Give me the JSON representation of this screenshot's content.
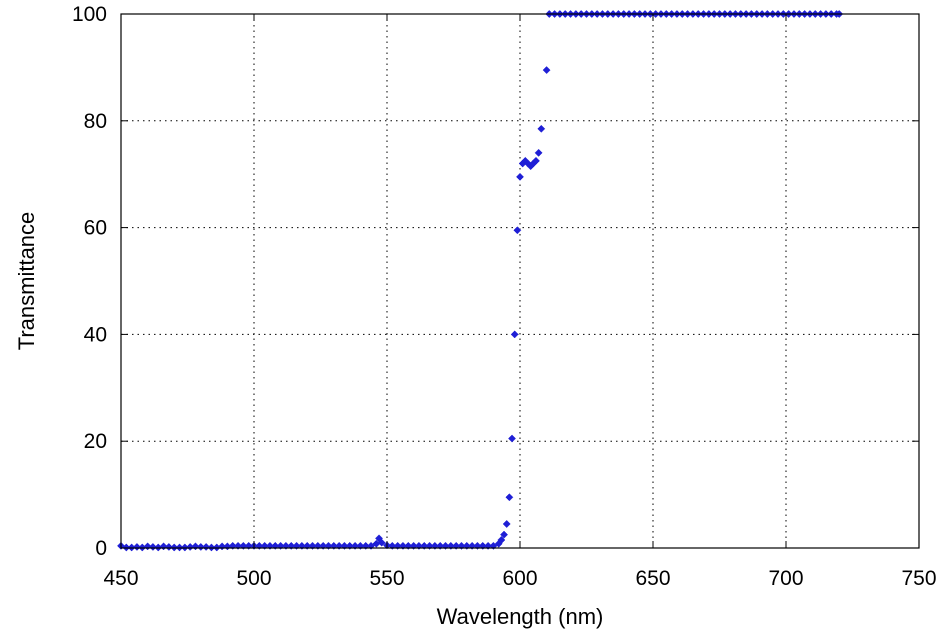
{
  "chart_data": {
    "type": "scatter",
    "title": "",
    "xlabel": "Wavelength (nm)",
    "ylabel": "Transmittance",
    "xlim": [
      450,
      750
    ],
    "ylim": [
      0,
      100
    ],
    "xticks": [
      "450",
      "500",
      "550",
      "600",
      "650",
      "700",
      "750"
    ],
    "xtick_values": [
      450,
      500,
      550,
      600,
      650,
      700,
      750
    ],
    "yticks": [
      "0",
      "20",
      "40",
      "60",
      "80",
      "100"
    ],
    "ytick_values": [
      0,
      20,
      40,
      60,
      80,
      100
    ],
    "grid": true,
    "marker_color": "#1f1fd6",
    "series": [
      {
        "points": [
          [
            450,
            0.4
          ],
          [
            452,
            0.1
          ],
          [
            454,
            0.1
          ],
          [
            456,
            0.2
          ],
          [
            458,
            0.1
          ],
          [
            460,
            0.3
          ],
          [
            462,
            0.2
          ],
          [
            464,
            0.1
          ],
          [
            466,
            0.3
          ],
          [
            468,
            0.2
          ],
          [
            470,
            0.1
          ],
          [
            472,
            0.1
          ],
          [
            474,
            0.1
          ],
          [
            476,
            0.2
          ],
          [
            478,
            0.3
          ],
          [
            480,
            0.2
          ],
          [
            482,
            0.2
          ],
          [
            484,
            0.1
          ],
          [
            486,
            0.1
          ],
          [
            488,
            0.3
          ],
          [
            490,
            0.3
          ],
          [
            492,
            0.4
          ],
          [
            494,
            0.4
          ],
          [
            496,
            0.4
          ],
          [
            498,
            0.4
          ],
          [
            500,
            0.4
          ],
          [
            502,
            0.4
          ],
          [
            504,
            0.4
          ],
          [
            506,
            0.4
          ],
          [
            508,
            0.4
          ],
          [
            510,
            0.4
          ],
          [
            512,
            0.4
          ],
          [
            514,
            0.4
          ],
          [
            516,
            0.4
          ],
          [
            518,
            0.4
          ],
          [
            520,
            0.4
          ],
          [
            522,
            0.4
          ],
          [
            524,
            0.4
          ],
          [
            526,
            0.4
          ],
          [
            528,
            0.4
          ],
          [
            530,
            0.4
          ],
          [
            532,
            0.4
          ],
          [
            534,
            0.4
          ],
          [
            536,
            0.4
          ],
          [
            538,
            0.4
          ],
          [
            540,
            0.4
          ],
          [
            542,
            0.4
          ],
          [
            544,
            0.4
          ],
          [
            546,
            0.8
          ],
          [
            547,
            1.8
          ],
          [
            548,
            1.0
          ],
          [
            550,
            0.5
          ],
          [
            552,
            0.4
          ],
          [
            554,
            0.4
          ],
          [
            556,
            0.4
          ],
          [
            558,
            0.4
          ],
          [
            560,
            0.4
          ],
          [
            562,
            0.4
          ],
          [
            564,
            0.4
          ],
          [
            566,
            0.4
          ],
          [
            568,
            0.4
          ],
          [
            570,
            0.4
          ],
          [
            572,
            0.4
          ],
          [
            574,
            0.4
          ],
          [
            576,
            0.4
          ],
          [
            578,
            0.4
          ],
          [
            580,
            0.4
          ],
          [
            582,
            0.4
          ],
          [
            584,
            0.4
          ],
          [
            586,
            0.4
          ],
          [
            588,
            0.4
          ],
          [
            590,
            0.4
          ],
          [
            592,
            0.8
          ],
          [
            593,
            1.5
          ],
          [
            594,
            2.5
          ],
          [
            595,
            4.5
          ],
          [
            596,
            9.5
          ],
          [
            597,
            20.5
          ],
          [
            598,
            40.0
          ],
          [
            599,
            59.5
          ],
          [
            600,
            69.5
          ],
          [
            601,
            72.0
          ],
          [
            602,
            72.5
          ],
          [
            603,
            72.0
          ],
          [
            604,
            71.5
          ],
          [
            605,
            72.0
          ],
          [
            606,
            72.5
          ],
          [
            607,
            74.0
          ],
          [
            608,
            78.5
          ],
          [
            610,
            89.5
          ],
          [
            611,
            100
          ],
          [
            613,
            100
          ],
          [
            615,
            100
          ],
          [
            617,
            100
          ],
          [
            619,
            100
          ],
          [
            621,
            100
          ],
          [
            623,
            100
          ],
          [
            625,
            100
          ],
          [
            627,
            100
          ],
          [
            629,
            100
          ],
          [
            631,
            100
          ],
          [
            633,
            100
          ],
          [
            635,
            100
          ],
          [
            637,
            100
          ],
          [
            639,
            100
          ],
          [
            641,
            100
          ],
          [
            643,
            100
          ],
          [
            645,
            100
          ],
          [
            647,
            100
          ],
          [
            649,
            100
          ],
          [
            651,
            100
          ],
          [
            653,
            100
          ],
          [
            655,
            100
          ],
          [
            657,
            100
          ],
          [
            659,
            100
          ],
          [
            661,
            100
          ],
          [
            663,
            100
          ],
          [
            665,
            100
          ],
          [
            667,
            100
          ],
          [
            669,
            100
          ],
          [
            671,
            100
          ],
          [
            673,
            100
          ],
          [
            675,
            100
          ],
          [
            677,
            100
          ],
          [
            679,
            100
          ],
          [
            681,
            100
          ],
          [
            683,
            100
          ],
          [
            685,
            100
          ],
          [
            687,
            100
          ],
          [
            689,
            100
          ],
          [
            691,
            100
          ],
          [
            693,
            100
          ],
          [
            695,
            100
          ],
          [
            697,
            100
          ],
          [
            699,
            100
          ],
          [
            701,
            100
          ],
          [
            703,
            100
          ],
          [
            705,
            100
          ],
          [
            707,
            100
          ],
          [
            709,
            100
          ],
          [
            711,
            100
          ],
          [
            713,
            100
          ],
          [
            715,
            100
          ],
          [
            717,
            100
          ],
          [
            719,
            100
          ],
          [
            720,
            100
          ]
        ]
      }
    ]
  }
}
